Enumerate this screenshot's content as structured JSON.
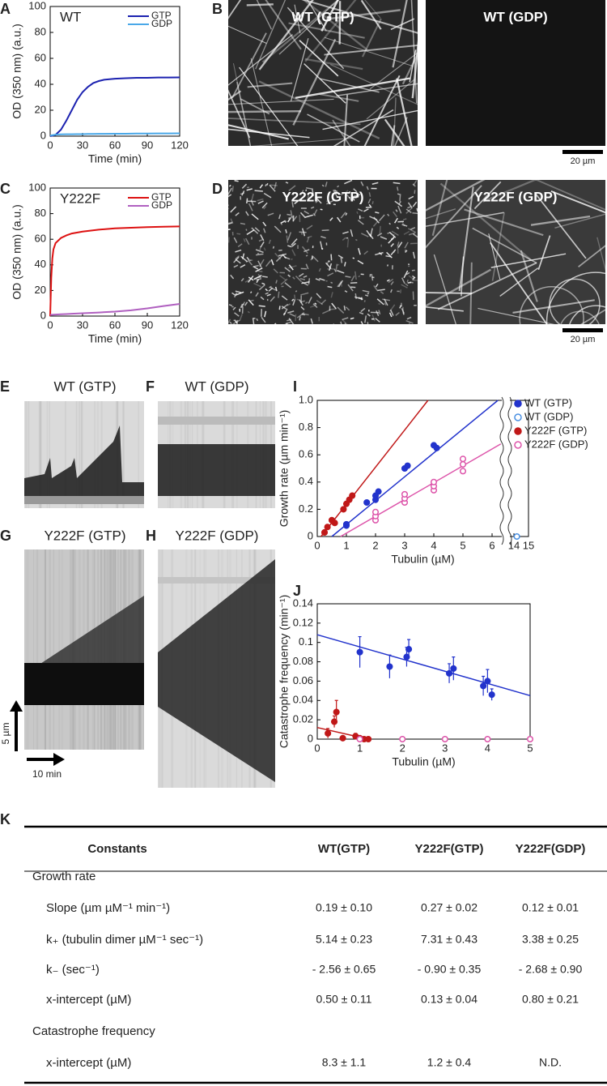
{
  "chart_data": [
    {
      "type": "line",
      "panel": "A",
      "annotation": "WT",
      "xlabel": "Time (min)",
      "ylabel": "OD (350 nm) (a.u.)",
      "x": [
        0,
        5,
        10,
        15,
        20,
        25,
        30,
        35,
        40,
        45,
        50,
        60,
        70,
        80,
        90,
        100,
        110,
        120
      ],
      "series": [
        {
          "name": "GTP",
          "color": "#1c22b0",
          "values": [
            0,
            1,
            5,
            12,
            20,
            28,
            34,
            38,
            41,
            42.5,
            43.5,
            44.3,
            44.7,
            45,
            45,
            45.2,
            45.2,
            45.3
          ]
        },
        {
          "name": "GDP",
          "color": "#4aa8e8",
          "values": [
            0.5,
            1.2,
            1.4,
            1.5,
            1.5,
            1.6,
            1.6,
            1.7,
            1.7,
            1.8,
            1.8,
            1.9,
            1.9,
            2,
            2,
            2.1,
            2.1,
            2.2
          ]
        }
      ],
      "xlim": [
        0,
        120
      ],
      "xticks": [
        0,
        30,
        60,
        90,
        120
      ],
      "ylim": [
        0,
        100
      ],
      "yticks": [
        0,
        20,
        40,
        60,
        80,
        100
      ],
      "legend": "upper right"
    },
    {
      "type": "line",
      "panel": "C",
      "annotation": "Y222F",
      "xlabel": "Time (min)",
      "ylabel": "OD (350 nm) (a.u.)",
      "x": [
        0,
        1,
        2,
        3,
        5,
        10,
        15,
        20,
        30,
        45,
        60,
        75,
        90,
        105,
        120
      ],
      "series": [
        {
          "name": "GTP",
          "color": "#dd1111",
          "values": [
            0,
            30,
            45,
            52,
            57,
            61,
            63,
            64.5,
            66,
            67.5,
            68.5,
            69,
            69.5,
            69.8,
            70
          ]
        },
        {
          "name": "GDP",
          "color": "#b060c0",
          "values": [
            1,
            1,
            1,
            1.1,
            1.2,
            1.4,
            1.6,
            1.8,
            2.2,
            2.8,
            3.5,
            4.5,
            6,
            7.8,
            9.5
          ]
        }
      ],
      "xlim": [
        0,
        120
      ],
      "xticks": [
        0,
        30,
        60,
        90,
        120
      ],
      "ylim": [
        0,
        100
      ],
      "yticks": [
        0,
        20,
        40,
        60,
        80,
        100
      ],
      "legend": "upper right"
    },
    {
      "type": "scatter",
      "panel": "I",
      "xlabel": "Tubulin (µM)",
      "ylabel": "Growth rate (µm min⁻¹)",
      "series": [
        {
          "name": "WT (GTP)",
          "color": "#2233cc",
          "marker": "filled",
          "x": [
            1,
            1,
            1.7,
            2,
            2,
            2.1,
            3,
            3.1,
            4,
            4.1
          ],
          "values": [
            0.08,
            0.09,
            0.25,
            0.27,
            0.3,
            0.33,
            0.5,
            0.52,
            0.67,
            0.65
          ],
          "fit": {
            "x": [
              0.5,
              6.2
            ],
            "y": [
              0,
              1
            ]
          }
        },
        {
          "name": "WT (GDP)",
          "color": "#4a90e2",
          "marker": "open",
          "x": [
            14.2
          ],
          "values": [
            0
          ]
        },
        {
          "name": "Y222F (GTP)",
          "color": "#c01818",
          "marker": "filled",
          "x": [
            0.25,
            0.35,
            0.5,
            0.6,
            0.9,
            1,
            1.1,
            1.2
          ],
          "values": [
            0.03,
            0.07,
            0.12,
            0.1,
            0.2,
            0.24,
            0.27,
            0.3
          ],
          "fit": {
            "x": [
              0.13,
              3.8
            ],
            "y": [
              0,
              1
            ]
          }
        },
        {
          "name": "Y222F (GDP)",
          "color": "#dd55aa",
          "marker": "open",
          "x": [
            2,
            2,
            2,
            3,
            3,
            3,
            4,
            4,
            4,
            5,
            5,
            5
          ],
          "values": [
            0.12,
            0.15,
            0.18,
            0.25,
            0.28,
            0.31,
            0.34,
            0.37,
            0.4,
            0.48,
            0.53,
            0.57
          ],
          "fit": {
            "x": [
              0.8,
              6.3
            ],
            "y": [
              0,
              0.68
            ]
          }
        }
      ],
      "xlim": [
        0,
        15
      ],
      "x_break": [
        6.5,
        13.5
      ],
      "xticks": [
        0,
        1,
        2,
        3,
        4,
        5,
        6,
        14,
        15
      ],
      "ylim": [
        0,
        1
      ],
      "yticks": [
        0,
        0.2,
        0.4,
        0.6,
        0.8,
        {
          "value": 1,
          "label": "1.0"
        }
      ],
      "legend": "right"
    },
    {
      "type": "scatter",
      "panel": "J",
      "xlabel": "Tubulin (µM)",
      "ylabel": "Catastrophe frequency (min⁻¹)",
      "series": [
        {
          "color": "#2233cc",
          "marker": "filled",
          "x": [
            1,
            1.7,
            2.1,
            2.15,
            3.1,
            3.2,
            3.9,
            4,
            4.1
          ],
          "values": [
            0.09,
            0.075,
            0.085,
            0.093,
            0.068,
            0.073,
            0.055,
            0.06,
            0.046
          ],
          "errors": [
            0.016,
            0.012,
            0.01,
            0.01,
            0.01,
            0.012,
            0.01,
            0.012,
            0.006
          ],
          "fit": {
            "x": [
              0,
              5
            ],
            "y": [
              0.108,
              0.045
            ]
          }
        },
        {
          "color": "#c01818",
          "marker": "filled",
          "x": [
            0.25,
            0.4,
            0.45,
            0.6,
            0.9,
            1,
            1.1,
            1.2
          ],
          "values": [
            0.006,
            0.018,
            0.028,
            0.001,
            0.003,
            0.001,
            0,
            0
          ],
          "errors": [
            0.005,
            0.006,
            0.012,
            0.002,
            0.003,
            0.002,
            0.001,
            0.001
          ],
          "fit": {
            "x": [
              0,
              1.2
            ],
            "y": [
              0.012,
              0
            ]
          }
        },
        {
          "color": "#dd55aa",
          "marker": "open",
          "x": [
            1,
            2,
            3,
            4,
            5
          ],
          "values": [
            0,
            0,
            0,
            0,
            0
          ]
        }
      ],
      "xlim": [
        0,
        5
      ],
      "xticks": [
        0,
        1,
        2,
        3,
        4,
        5
      ],
      "ylim": [
        0,
        0.14
      ],
      "yticks": [
        0,
        0.02,
        0.04,
        0.06,
        0.08,
        0.1,
        0.12,
        0.14
      ]
    }
  ],
  "micrographs": [
    {
      "panel": "B",
      "images": [
        "WT (GTP)",
        "WT (GDP)"
      ],
      "scale_bar": "20 µm"
    },
    {
      "panel": "D",
      "images": [
        "Y222F (GTP)",
        "Y222F (GDP)"
      ],
      "scale_bar": "20 µm"
    }
  ],
  "kymographs": [
    {
      "panel": "E",
      "title": "WT (GTP)"
    },
    {
      "panel": "F",
      "title": "WT (GDP)"
    },
    {
      "panel": "G",
      "title": "Y222F (GTP)"
    },
    {
      "panel": "H",
      "title": "Y222F (GDP)"
    }
  ],
  "kymograph_scale": {
    "vertical": "5 µm",
    "horizontal": "10 min"
  },
  "table": {
    "panel": "K",
    "header": [
      "Constants",
      "WT(GTP)",
      "Y222F(GTP)",
      "Y222F(GDP)"
    ],
    "rows": [
      [
        "Growth rate"
      ],
      [
        "Slope (µm µM⁻¹ min⁻¹)",
        "0.19 ± 0.10",
        "0.27 ± 0.02",
        "0.12 ± 0.01"
      ],
      [
        "k₊ (tubulin dimer µM⁻¹ sec⁻¹)",
        "5.14 ± 0.23",
        "7.31 ± 0.43",
        "3.38 ± 0.25"
      ],
      [
        "k₋ (sec⁻¹)",
        "- 2.56 ± 0.65",
        "- 0.90 ± 0.35",
        "- 2.68 ± 0.90"
      ],
      [
        "x-intercept (µM)",
        "0.50 ± 0.11",
        "0.13 ± 0.04",
        "0.80 ± 0.21"
      ],
      [
        "Catastrophe frequency"
      ],
      [
        "x-intercept (µM)",
        "8.3 ± 1.1",
        "1.2 ± 0.4",
        "N.D."
      ]
    ]
  }
}
